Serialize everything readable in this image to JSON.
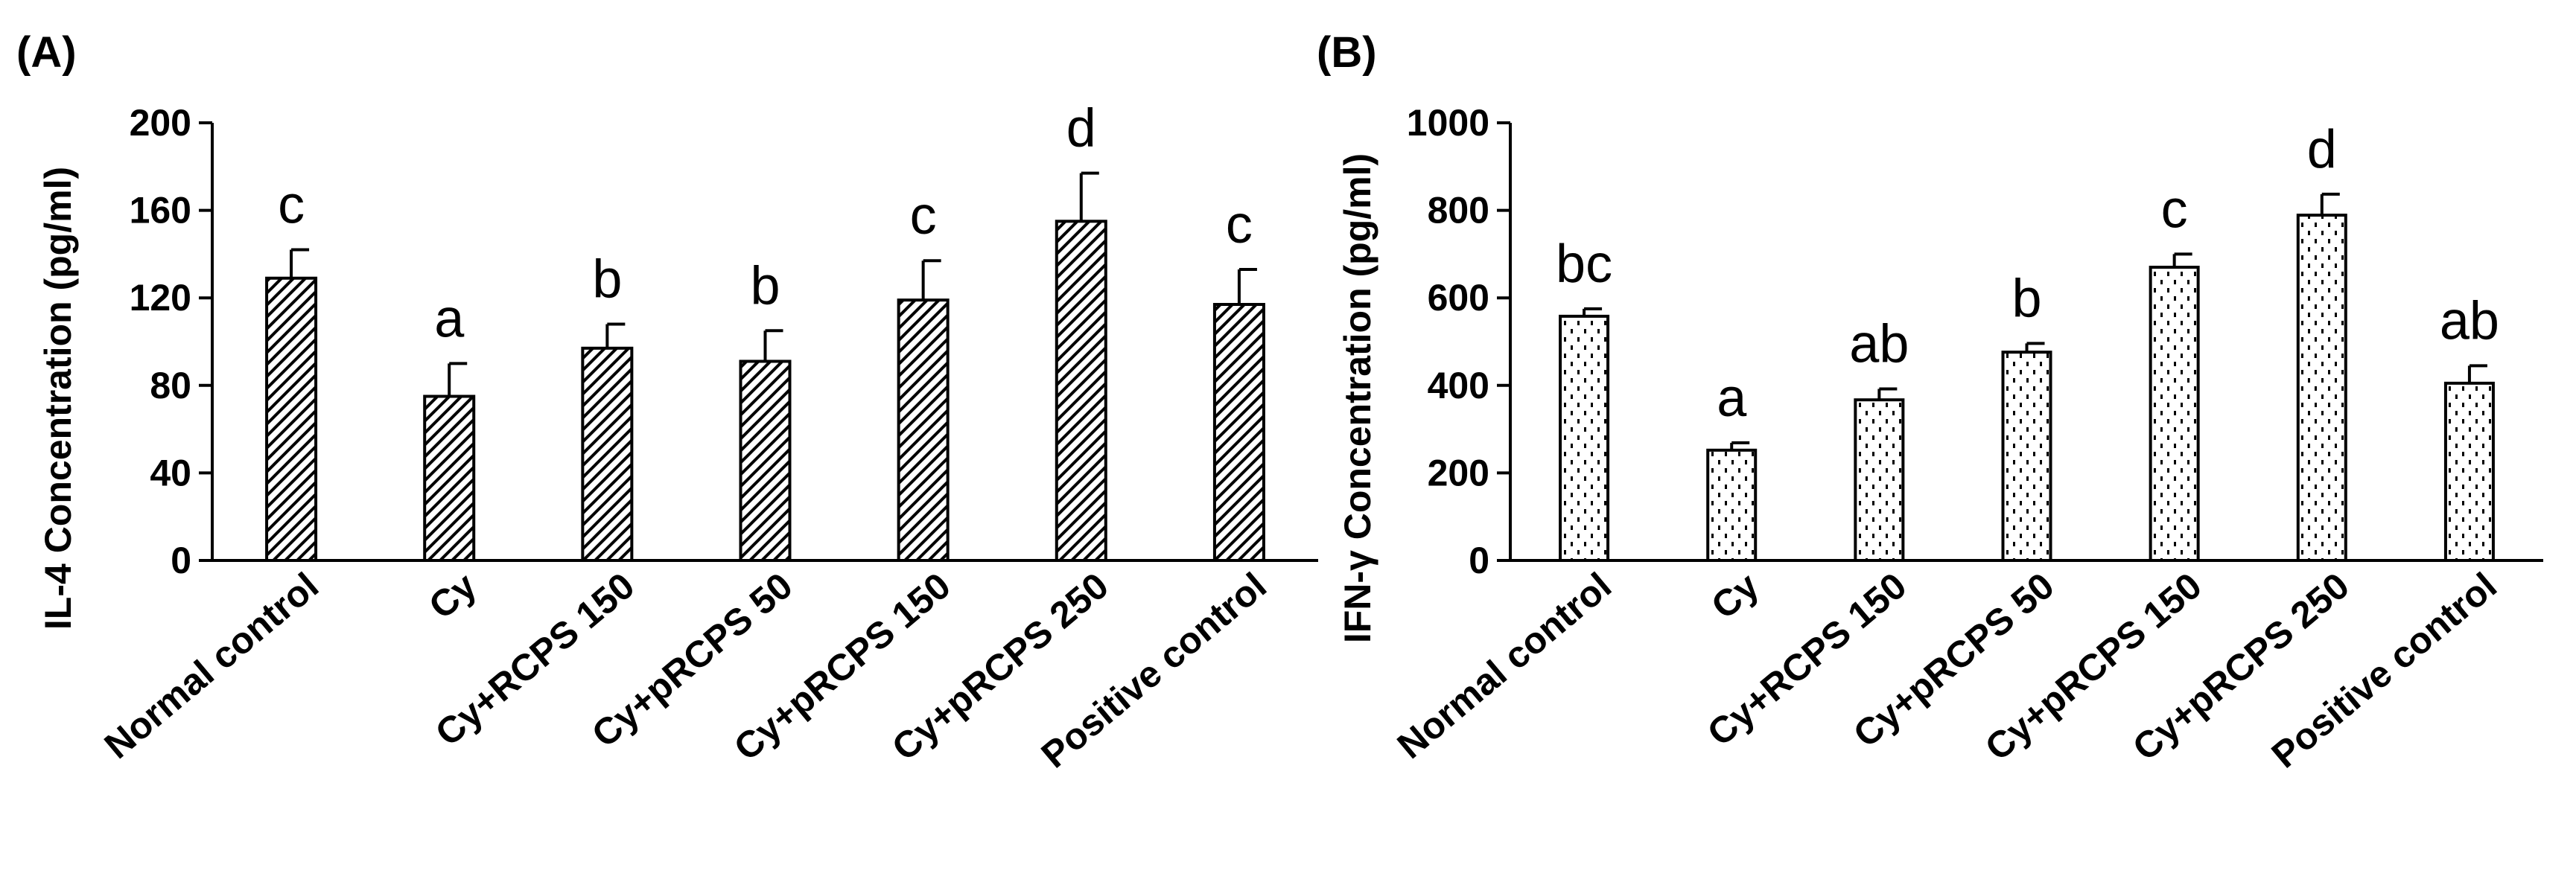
{
  "chart_data": [
    {
      "type": "bar",
      "panel_label": "(A)",
      "title": "",
      "xlabel": "",
      "ylabel": "IL-4 Concentration (pg/ml)",
      "ylim": [
        0,
        200
      ],
      "yticks": [
        "0",
        "40",
        "80",
        "120",
        "160",
        "200"
      ],
      "ytick_values": [
        0,
        40,
        80,
        120,
        160,
        200
      ],
      "pattern": "diagonal-hatch",
      "categories": [
        "Normal control",
        "Cy",
        "Cy+RCPS 150",
        "Cy+pRCPS 50",
        "Cy+pRCPS 150",
        "Cy+pRCPS 250",
        "Positive control"
      ],
      "values": [
        129,
        75,
        97,
        91,
        119,
        155,
        117
      ],
      "errors": [
        13,
        15,
        11,
        14,
        18,
        22,
        16
      ],
      "significance": [
        "c",
        "a",
        "b",
        "b",
        "c",
        "d",
        "c"
      ]
    },
    {
      "type": "bar",
      "panel_label": "(B)",
      "title": "",
      "xlabel": "",
      "ylabel": "IFN-γ Concentration (pg/ml)",
      "ylim": [
        0,
        1000
      ],
      "yticks": [
        "0",
        "200",
        "400",
        "600",
        "800",
        "1000"
      ],
      "ytick_values": [
        0,
        200,
        400,
        600,
        800,
        1000
      ],
      "pattern": "dotted",
      "categories": [
        "Normal control",
        "Cy",
        "Cy+RCPS 150",
        "Cy+pRCPS 50",
        "Cy+pRCPS 150",
        "Cy+pRCPS 250",
        "Positive control"
      ],
      "values": [
        558,
        252,
        367,
        476,
        670,
        789,
        405
      ],
      "errors": [
        17,
        17,
        25,
        20,
        30,
        48,
        40
      ],
      "significance": [
        "bc",
        "a",
        "ab",
        "b",
        "c",
        "d",
        "ab"
      ]
    }
  ]
}
